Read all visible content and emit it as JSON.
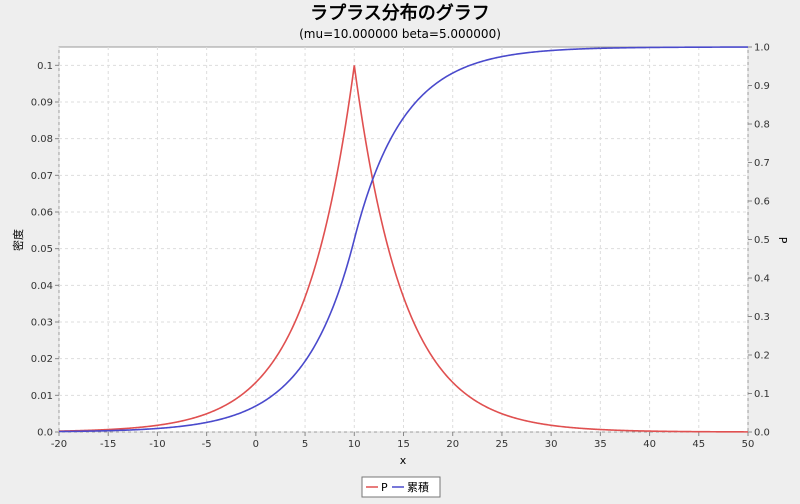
{
  "chart_data": {
    "type": "line",
    "title": "ラプラス分布のグラフ",
    "subtitle": "(mu=10.000000 beta=5.000000)",
    "xlabel": "x",
    "ylabel_left": "密度",
    "ylabel_right": "P",
    "xlim": [
      -20,
      50
    ],
    "ylim_left": [
      0,
      0.105
    ],
    "ylim_right": [
      0,
      1.0
    ],
    "x_ticks": [
      -20,
      -15,
      -10,
      -5,
      0,
      5,
      10,
      15,
      20,
      25,
      30,
      35,
      40,
      45,
      50
    ],
    "y_ticks_left": [
      0.0,
      0.01,
      0.02,
      0.03,
      0.04,
      0.05,
      0.06,
      0.07,
      0.08,
      0.09,
      0.1
    ],
    "y_ticks_right": [
      0.0,
      0.1,
      0.2,
      0.3,
      0.4,
      0.5,
      0.6,
      0.7,
      0.8,
      0.9,
      1.0
    ],
    "grid": true,
    "legend_position": "bottom-center",
    "series": [
      {
        "name": "P",
        "axis": "left",
        "color": "#e05050",
        "x": [
          -20,
          -15,
          -10,
          -5,
          0,
          2,
          4,
          6,
          8,
          9,
          10,
          11,
          12,
          14,
          16,
          18,
          20,
          25,
          30,
          35,
          40,
          45,
          50
        ],
        "y": [
          0.0002,
          0.0007,
          0.0018,
          0.005,
          0.0135,
          0.0202,
          0.0301,
          0.0449,
          0.067,
          0.0819,
          0.1,
          0.0819,
          0.067,
          0.0449,
          0.0301,
          0.0202,
          0.0135,
          0.005,
          0.0018,
          0.0007,
          0.0002,
          0.0001,
          0.0
        ]
      },
      {
        "name": "累積",
        "axis": "right",
        "color": "#4a4acc",
        "x": [
          -20,
          -15,
          -10,
          -5,
          0,
          2,
          4,
          6,
          8,
          10,
          12,
          14,
          16,
          18,
          20,
          25,
          30,
          35,
          40,
          45,
          50
        ],
        "y": [
          0.0012,
          0.0034,
          0.0092,
          0.025,
          0.068,
          0.101,
          0.151,
          0.225,
          0.335,
          0.5,
          0.665,
          0.775,
          0.849,
          0.899,
          0.932,
          0.975,
          0.991,
          0.997,
          0.999,
          0.9996,
          0.9998
        ]
      }
    ]
  }
}
